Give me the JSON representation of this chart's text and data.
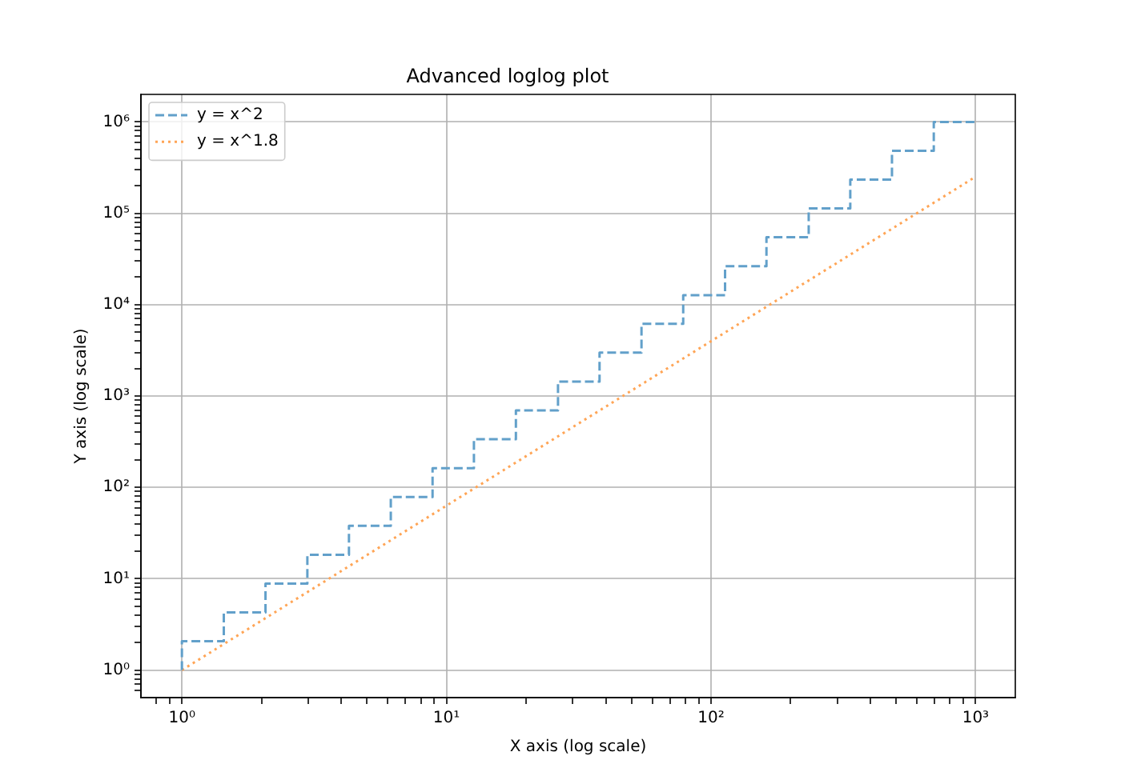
{
  "chart_data": {
    "type": "line",
    "title": "Advanced loglog plot",
    "xlabel": "X axis (log scale)",
    "ylabel": "Y axis (log scale)",
    "x": [
      1,
      1.44,
      2.07,
      2.98,
      4.28,
      6.16,
      8.86,
      12.7,
      18.3,
      26.4,
      37.9,
      54.6,
      78.5,
      113,
      162,
      234,
      336,
      483,
      695,
      1000
    ],
    "series": [
      {
        "name": "y = x^2",
        "type": "step",
        "color": "#62a0ca",
        "line_style": "dashed",
        "values": [
          1,
          2.07,
          4.28,
          8.86,
          18.3,
          37.9,
          78.5,
          162,
          336,
          695,
          1440,
          2980,
          6160,
          12700,
          26400,
          54600,
          113000,
          234000,
          483000,
          1000000
        ]
      },
      {
        "name": "y = x^1.8",
        "type": "line",
        "color": "#ffa556",
        "line_style": "dotted",
        "x": [
          1,
          1000
        ],
        "values": [
          1,
          251000
        ]
      }
    ],
    "xlim": [
      0.708,
      1413
    ],
    "ylim": [
      0.5,
      2000000
    ],
    "xticks": [
      {
        "value": 0.8,
        "label": null
      },
      {
        "value": 0.9,
        "label": null
      },
      {
        "value": 1,
        "label": "10⁰"
      },
      {
        "value": 2,
        "label": null
      },
      {
        "value": 3,
        "label": null
      },
      {
        "value": 4,
        "label": null
      },
      {
        "value": 5,
        "label": null
      },
      {
        "value": 6,
        "label": null
      },
      {
        "value": 7,
        "label": null
      },
      {
        "value": 8,
        "label": null
      },
      {
        "value": 9,
        "label": null
      },
      {
        "value": 10,
        "label": "10¹"
      },
      {
        "value": 20,
        "label": null
      },
      {
        "value": 30,
        "label": null
      },
      {
        "value": 40,
        "label": null
      },
      {
        "value": 50,
        "label": null
      },
      {
        "value": 60,
        "label": null
      },
      {
        "value": 70,
        "label": null
      },
      {
        "value": 80,
        "label": null
      },
      {
        "value": 90,
        "label": null
      },
      {
        "value": 100,
        "label": "10²"
      },
      {
        "value": 200,
        "label": null
      },
      {
        "value": 300,
        "label": null
      },
      {
        "value": 400,
        "label": null
      },
      {
        "value": 500,
        "label": null
      },
      {
        "value": 600,
        "label": null
      },
      {
        "value": 700,
        "label": null
      },
      {
        "value": 800,
        "label": null
      },
      {
        "value": 900,
        "label": null
      },
      {
        "value": 1000,
        "label": "10³"
      }
    ],
    "yticks": [
      {
        "value": 0.6,
        "label": null
      },
      {
        "value": 0.7,
        "label": null
      },
      {
        "value": 0.8,
        "label": null
      },
      {
        "value": 0.9,
        "label": null
      },
      {
        "value": 1,
        "label": "10⁰"
      },
      {
        "value": 2,
        "label": null
      },
      {
        "value": 3,
        "label": null
      },
      {
        "value": 4,
        "label": null
      },
      {
        "value": 5,
        "label": null
      },
      {
        "value": 6,
        "label": null
      },
      {
        "value": 7,
        "label": null
      },
      {
        "value": 8,
        "label": null
      },
      {
        "value": 9,
        "label": null
      },
      {
        "value": 10,
        "label": "10¹"
      },
      {
        "value": 20,
        "label": null
      },
      {
        "value": 30,
        "label": null
      },
      {
        "value": 40,
        "label": null
      },
      {
        "value": 50,
        "label": null
      },
      {
        "value": 60,
        "label": null
      },
      {
        "value": 70,
        "label": null
      },
      {
        "value": 80,
        "label": null
      },
      {
        "value": 90,
        "label": null
      },
      {
        "value": 100,
        "label": "10²"
      },
      {
        "value": 200,
        "label": null
      },
      {
        "value": 300,
        "label": null
      },
      {
        "value": 400,
        "label": null
      },
      {
        "value": 500,
        "label": null
      },
      {
        "value": 600,
        "label": null
      },
      {
        "value": 700,
        "label": null
      },
      {
        "value": 800,
        "label": null
      },
      {
        "value": 900,
        "label": null
      },
      {
        "value": 1000,
        "label": "10³"
      },
      {
        "value": 2000,
        "label": null
      },
      {
        "value": 3000,
        "label": null
      },
      {
        "value": 4000,
        "label": null
      },
      {
        "value": 5000,
        "label": null
      },
      {
        "value": 6000,
        "label": null
      },
      {
        "value": 7000,
        "label": null
      },
      {
        "value": 8000,
        "label": null
      },
      {
        "value": 9000,
        "label": null
      },
      {
        "value": 10000,
        "label": "10⁴"
      },
      {
        "value": 20000,
        "label": null
      },
      {
        "value": 30000,
        "label": null
      },
      {
        "value": 40000,
        "label": null
      },
      {
        "value": 50000,
        "label": null
      },
      {
        "value": 60000,
        "label": null
      },
      {
        "value": 70000,
        "label": null
      },
      {
        "value": 80000,
        "label": null
      },
      {
        "value": 90000,
        "label": null
      },
      {
        "value": 100000,
        "label": "10⁵"
      },
      {
        "value": 200000,
        "label": null
      },
      {
        "value": 300000,
        "label": null
      },
      {
        "value": 400000,
        "label": null
      },
      {
        "value": 500000,
        "label": null
      },
      {
        "value": 600000,
        "label": null
      },
      {
        "value": 700000,
        "label": null
      },
      {
        "value": 800000,
        "label": null
      },
      {
        "value": 900000,
        "label": null
      },
      {
        "value": 1000000,
        "label": "10⁶"
      }
    ],
    "log": "xy",
    "grid": true,
    "legend": "top left"
  }
}
